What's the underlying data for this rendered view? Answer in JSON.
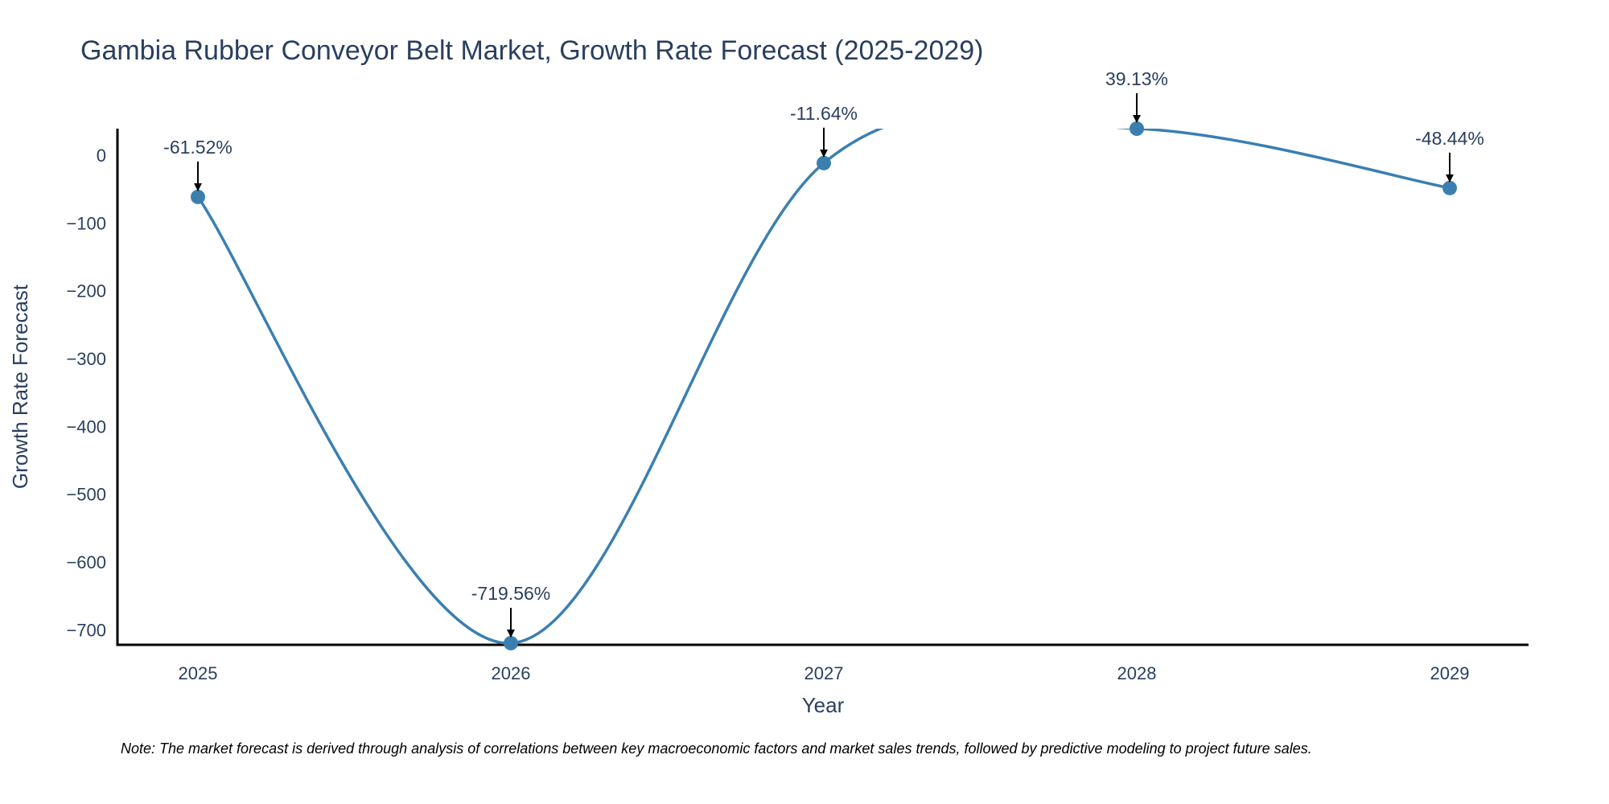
{
  "chart_data": {
    "type": "line",
    "title": "Gambia Rubber Conveyor Belt Market, Growth Rate Forecast (2025-2029)",
    "xlabel": "Year",
    "ylabel": "Growth Rate Forecast",
    "x": [
      "2025",
      "2026",
      "2027",
      "2028",
      "2029"
    ],
    "y_ticks": [
      0,
      -100,
      -200,
      -300,
      -400,
      -500,
      -600,
      -700
    ],
    "y_tick_labels": [
      "0",
      "−100",
      "−200",
      "−300",
      "−400",
      "−500",
      "−600",
      "−700"
    ],
    "ylim": [
      -722,
      39.13
    ],
    "series": [
      {
        "values": [
          -61.52,
          -719.56,
          -11.64,
          39.13,
          -48.44
        ],
        "color": "#3b7fb0",
        "smooth": true,
        "markers": true
      }
    ],
    "annotations": [
      "-61.52%",
      "-719.56%",
      "-11.64%",
      "39.13%",
      "-48.44%"
    ],
    "grid": false,
    "legend": "none"
  },
  "note": "Note: The market forecast is derived through analysis of correlations between key macroeconomic factors and market sales trends, followed by predictive modeling to project future sales."
}
